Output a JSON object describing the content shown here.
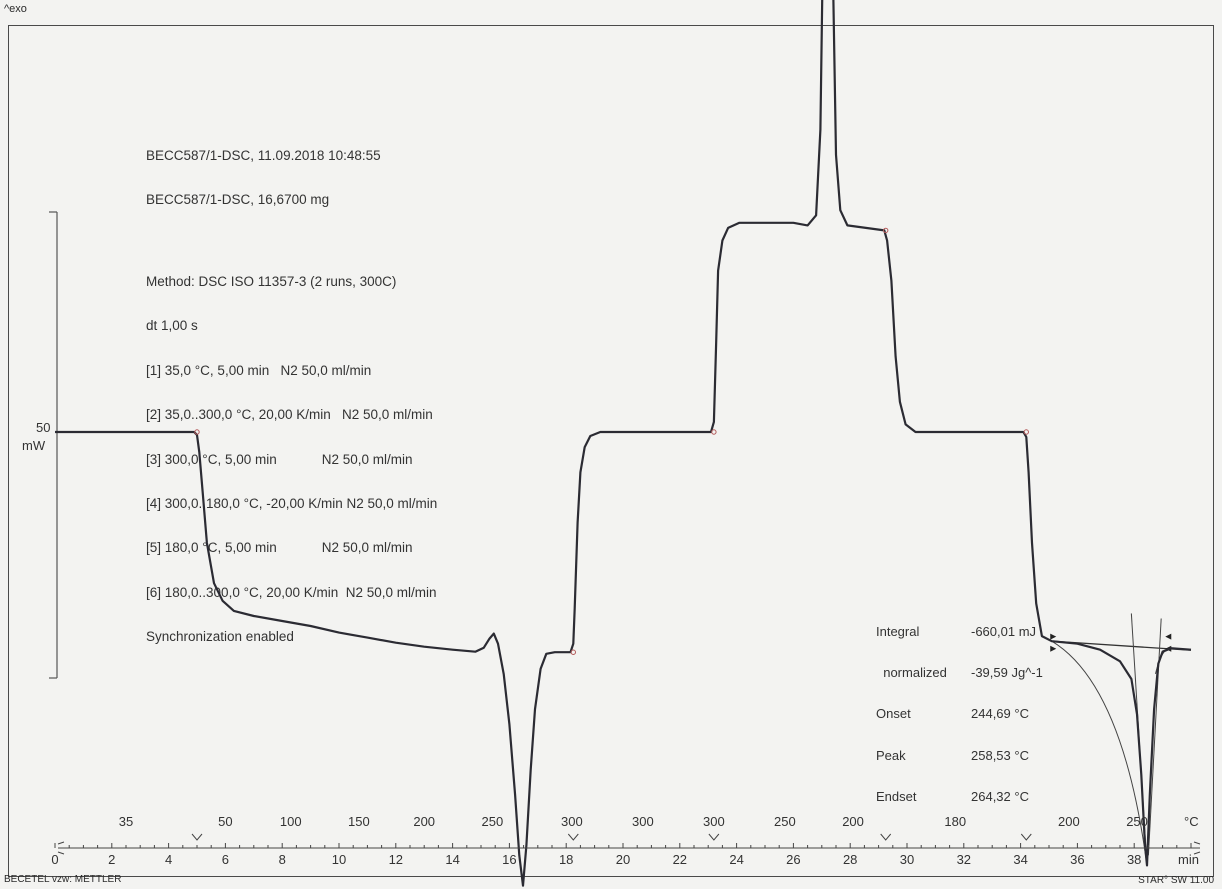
{
  "header": {
    "exo_label": "^exo"
  },
  "info_block": {
    "lines": [
      "BECC587/1-DSC, 11.09.2018 10:48:55",
      "BECC587/1-DSC, 16,6700 mg",
      "",
      "Method: DSC ISO 11357-3 (2 runs, 300C)",
      "dt 1,00 s",
      "[1] 35,0 °C, 5,00 min   N2 50,0 ml/min",
      "[2] 35,0..300,0 °C, 20,00 K/min   N2 50,0 ml/min",
      "[3] 300,0 °C, 5,00 min            N2 50,0 ml/min",
      "[4] 300,0..180,0 °C, -20,00 K/min N2 50,0 ml/min",
      "[5] 180,0 °C, 5,00 min            N2 50,0 ml/min",
      "[6] 180,0..300,0 °C, 20,00 K/min  N2 50,0 ml/min",
      "Synchronization enabled"
    ]
  },
  "results": {
    "labels": [
      "Integral",
      "  normalized",
      "Onset",
      "Peak",
      "Endset"
    ],
    "values": [
      "-660,01 mJ",
      "-39,59 Jg^-1",
      "244,69 °C",
      "258,53 °C",
      "264,32 °C"
    ]
  },
  "scale_bar": {
    "value": "50",
    "unit": "mW"
  },
  "footer": {
    "left": "BECETEL vzw: METTLER",
    "right": "STAR° SW 11.00"
  },
  "chart_data": {
    "type": "line",
    "title": "",
    "xlabel": "min",
    "x_range": [
      0,
      40
    ],
    "x_ticks": [
      0,
      2,
      4,
      6,
      8,
      10,
      12,
      14,
      16,
      18,
      20,
      22,
      24,
      26,
      28,
      30,
      32,
      34,
      36,
      38
    ],
    "temperature_axis": {
      "unit": "°C",
      "labels": [
        {
          "t": 2.5,
          "label": "35"
        },
        {
          "t": 6.0,
          "label": "50"
        },
        {
          "t": 8.3,
          "label": "100"
        },
        {
          "t": 10.7,
          "label": "150"
        },
        {
          "t": 13.0,
          "label": "200"
        },
        {
          "t": 15.4,
          "label": "250"
        },
        {
          "t": 18.2,
          "label": "300"
        },
        {
          "t": 20.7,
          "label": "300"
        },
        {
          "t": 23.2,
          "label": "300"
        },
        {
          "t": 25.7,
          "label": "250"
        },
        {
          "t": 28.1,
          "label": "200"
        },
        {
          "t": 31.7,
          "label": "180"
        },
        {
          "t": 35.7,
          "label": "200"
        },
        {
          "t": 38.1,
          "label": "250"
        }
      ]
    },
    "segment_boundaries_min": [
      5.0,
      18.25,
      23.2,
      29.25,
      34.2
    ],
    "y_scale_mW": 50,
    "series": [
      {
        "points": [
          [
            0,
            0
          ],
          [
            4.9,
            0
          ],
          [
            5.0,
            -0.6
          ],
          [
            5.08,
            -4
          ],
          [
            5.2,
            -12
          ],
          [
            5.35,
            -22
          ],
          [
            5.6,
            -30
          ],
          [
            5.9,
            -33.5
          ],
          [
            6.3,
            -35.5
          ],
          [
            7,
            -36.5
          ],
          [
            8,
            -37.5
          ],
          [
            9,
            -38.5
          ],
          [
            10,
            -39.8
          ],
          [
            11,
            -40.8
          ],
          [
            12,
            -41.8
          ],
          [
            13,
            -42.6
          ],
          [
            14,
            -43.2
          ],
          [
            14.8,
            -43.6
          ],
          [
            15.1,
            -42.8
          ],
          [
            15.3,
            -41
          ],
          [
            15.45,
            -40
          ],
          [
            15.6,
            -42
          ],
          [
            15.8,
            -48
          ],
          [
            16.0,
            -58
          ],
          [
            16.2,
            -72
          ],
          [
            16.35,
            -84
          ],
          [
            16.48,
            -90
          ],
          [
            16.6,
            -82
          ],
          [
            16.75,
            -67
          ],
          [
            16.9,
            -55
          ],
          [
            17.1,
            -47
          ],
          [
            17.3,
            -44
          ],
          [
            17.6,
            -43.7
          ],
          [
            18.15,
            -43.7
          ],
          [
            18.25,
            -42
          ],
          [
            18.3,
            -35
          ],
          [
            18.4,
            -18
          ],
          [
            18.5,
            -8
          ],
          [
            18.65,
            -3
          ],
          [
            18.85,
            -0.8
          ],
          [
            19.2,
            0
          ],
          [
            23.1,
            0
          ],
          [
            23.2,
            2
          ],
          [
            23.28,
            18
          ],
          [
            23.35,
            32
          ],
          [
            23.5,
            38
          ],
          [
            23.7,
            40.5
          ],
          [
            24.1,
            41.5
          ],
          [
            26.0,
            41.5
          ],
          [
            26.5,
            41
          ],
          [
            26.8,
            43
          ],
          [
            26.95,
            60
          ],
          [
            27.05,
            100
          ],
          [
            27.12,
            128
          ],
          [
            27.2,
            138
          ],
          [
            27.3,
            125
          ],
          [
            27.4,
            88
          ],
          [
            27.5,
            55
          ],
          [
            27.65,
            44
          ],
          [
            27.9,
            41
          ],
          [
            29.2,
            40
          ],
          [
            29.3,
            38
          ],
          [
            29.45,
            30
          ],
          [
            29.6,
            15
          ],
          [
            29.75,
            6
          ],
          [
            29.95,
            1.5
          ],
          [
            30.3,
            0
          ],
          [
            34.1,
            0
          ],
          [
            34.2,
            -1
          ],
          [
            34.28,
            -8
          ],
          [
            34.4,
            -22
          ],
          [
            34.55,
            -34
          ],
          [
            34.75,
            -40.5
          ],
          [
            35.1,
            -41.5
          ],
          [
            36.0,
            -42
          ],
          [
            36.8,
            -43.2
          ],
          [
            37.5,
            -45.5
          ],
          [
            37.9,
            -49
          ],
          [
            38.1,
            -56
          ],
          [
            38.25,
            -68
          ],
          [
            38.38,
            -82
          ],
          [
            38.45,
            -86
          ],
          [
            38.55,
            -72
          ],
          [
            38.7,
            -55
          ],
          [
            38.85,
            -46
          ],
          [
            39.0,
            -43.6
          ],
          [
            39.3,
            -42.9
          ],
          [
            40.0,
            -43.2
          ]
        ]
      }
    ],
    "annotations": {
      "integral_baseline": {
        "from": [
          35.1,
          -41.5
        ],
        "to": [
          40.0,
          -43.3
        ]
      }
    }
  }
}
